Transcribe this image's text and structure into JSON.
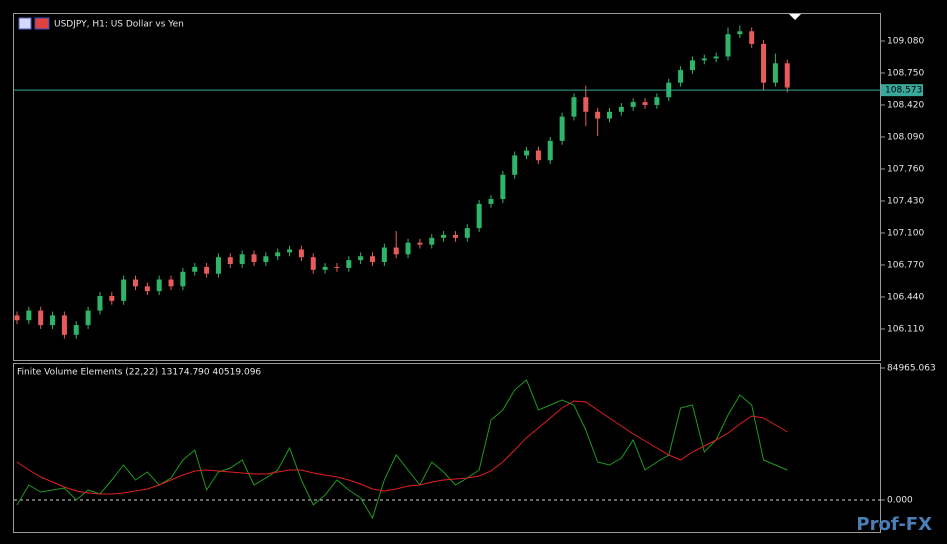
{
  "header": {
    "symbol": "USDJPY, H1:  US Dollar vs Yen"
  },
  "watermark": "Prof-FX",
  "chart_data": [
    {
      "type": "candlestick",
      "up_color": "#2fb56a",
      "down_color": "#e85b5b",
      "open": [
        106.25,
        106.2,
        106.3,
        106.15,
        106.25,
        106.05,
        106.15,
        106.3,
        106.45,
        106.4,
        106.62,
        106.55,
        106.5,
        106.62,
        106.55,
        106.7,
        106.75,
        106.68,
        106.85,
        106.78,
        106.88,
        106.8,
        106.86,
        106.9,
        106.93,
        106.85,
        106.72,
        106.75,
        106.74,
        106.82,
        106.86,
        106.8,
        106.95,
        106.88,
        107.0,
        106.98,
        107.05,
        107.08,
        107.05,
        107.15,
        107.4,
        107.45,
        107.7,
        107.9,
        107.95,
        107.85,
        108.05,
        108.3,
        108.5,
        108.35,
        108.28,
        108.35,
        108.4,
        108.45,
        108.42,
        108.5,
        108.65,
        108.78,
        108.88,
        108.9,
        108.92,
        109.15,
        109.18,
        109.05,
        108.65,
        108.85
      ],
      "high": [
        106.29,
        106.34,
        106.34,
        106.29,
        106.29,
        106.19,
        106.34,
        106.49,
        106.49,
        106.66,
        106.66,
        106.59,
        106.66,
        106.66,
        106.74,
        106.79,
        106.79,
        106.89,
        106.89,
        106.92,
        106.92,
        106.9,
        106.94,
        106.97,
        106.97,
        106.89,
        106.79,
        106.79,
        106.86,
        106.9,
        106.9,
        106.99,
        107.12,
        107.04,
        107.04,
        107.09,
        107.12,
        107.12,
        107.19,
        107.44,
        107.49,
        107.74,
        107.94,
        107.99,
        107.99,
        108.09,
        108.34,
        108.54,
        108.62,
        108.39,
        108.39,
        108.44,
        108.49,
        108.49,
        108.54,
        108.69,
        108.82,
        108.92,
        108.94,
        108.96,
        109.22,
        109.24,
        109.22,
        109.09,
        108.95,
        108.89
      ],
      "low": [
        106.16,
        106.16,
        106.11,
        106.11,
        106.01,
        106.01,
        106.11,
        106.26,
        106.36,
        106.36,
        106.51,
        106.46,
        106.46,
        106.51,
        106.51,
        106.66,
        106.64,
        106.64,
        106.74,
        106.74,
        106.76,
        106.76,
        106.82,
        106.86,
        106.81,
        106.68,
        106.68,
        106.7,
        106.7,
        106.78,
        106.76,
        106.76,
        106.84,
        106.84,
        106.94,
        106.94,
        107.01,
        107.01,
        107.01,
        107.11,
        107.36,
        107.41,
        107.66,
        107.86,
        107.81,
        107.81,
        108.01,
        108.26,
        108.2,
        108.1,
        108.24,
        108.31,
        108.36,
        108.38,
        108.38,
        108.46,
        108.61,
        108.74,
        108.84,
        108.86,
        108.88,
        109.11,
        109.01,
        108.57,
        108.61,
        108.55
      ],
      "close": [
        106.2,
        106.3,
        106.15,
        106.25,
        106.05,
        106.15,
        106.3,
        106.45,
        106.4,
        106.62,
        106.55,
        106.5,
        106.62,
        106.55,
        106.7,
        106.75,
        106.68,
        106.85,
        106.78,
        106.88,
        106.8,
        106.86,
        106.9,
        106.93,
        106.85,
        106.72,
        106.75,
        106.74,
        106.82,
        106.86,
        106.8,
        106.95,
        106.88,
        107.0,
        106.98,
        107.05,
        107.08,
        107.05,
        107.15,
        107.4,
        107.45,
        107.7,
        107.9,
        107.95,
        107.85,
        108.05,
        108.3,
        108.5,
        108.35,
        108.28,
        108.35,
        108.4,
        108.45,
        108.42,
        108.5,
        108.65,
        108.78,
        108.88,
        108.9,
        108.92,
        109.15,
        109.18,
        109.05,
        108.65,
        108.85,
        108.6
      ],
      "ylim": [
        105.79,
        109.348
      ],
      "yticks": [
        {
          "value": 106.11,
          "label": "106.110"
        },
        {
          "value": 106.44,
          "label": "106.440"
        },
        {
          "value": 106.77,
          "label": "106.770"
        },
        {
          "value": 107.1,
          "label": "107.100"
        },
        {
          "value": 107.43,
          "label": "107.430"
        },
        {
          "value": 107.76,
          "label": "107.760"
        },
        {
          "value": 108.09,
          "label": "108.090"
        },
        {
          "value": 108.42,
          "label": "108.420"
        },
        {
          "value": 108.75,
          "label": "108.750"
        },
        {
          "value": 109.08,
          "label": "109.080"
        }
      ],
      "price_line": {
        "value": 108.573,
        "color": "#3aa89a"
      }
    },
    {
      "type": "line",
      "title": "Finite Volume Elements (22,22) 13174.790 40519.096",
      "series": [
        {
          "color": "#1f9a1f",
          "values": [
            -3220,
            9660,
            5152,
            6440,
            7728,
            0,
            6440,
            3864,
            12880,
            22540,
            12880,
            18032,
            9660,
            14168,
            25760,
            32200,
            6440,
            18032,
            20608,
            25760,
            9660,
            14168,
            19320,
            33488,
            12880,
            -3220,
            3220,
            12880,
            6440,
            1288,
            -11592,
            12880,
            28980,
            19320,
            9660,
            24472,
            18032,
            9660,
            14168,
            19320,
            51520,
            57960,
            70840,
            77280,
            57960,
            61180,
            64400,
            61180,
            45080,
            24472,
            22540,
            27048,
            38640,
            19320,
            24472,
            28980,
            59248,
            61180,
            30912,
            38640,
            54740,
            67620,
            61180,
            25760,
            22540,
            19320
          ]
        },
        {
          "color": "#e02020",
          "values": [
            24472,
            19320,
            14812,
            11592,
            8372,
            5796,
            4508,
            3864,
            3864,
            4508,
            5796,
            7084,
            9660,
            12880,
            16100,
            18676,
            19320,
            18676,
            18032,
            17388,
            16744,
            16744,
            18032,
            19320,
            19320,
            17388,
            16100,
            14812,
            12880,
            10304,
            7084,
            5796,
            7084,
            9016,
            9660,
            11592,
            12880,
            13524,
            14168,
            15456,
            18676,
            24472,
            32200,
            40112,
            46368,
            52808,
            59248,
            63756,
            63112,
            57960,
            52808,
            47656,
            42504,
            37996,
            33488,
            28980,
            25760,
            30912,
            34776,
            38640,
            43148,
            48944,
            54096,
            52808,
            48300,
            43792
          ]
        }
      ],
      "level": 0,
      "ylim": [
        -20600,
        86900
      ],
      "yticks": [
        {
          "value": 0,
          "label": "0.000"
        },
        84965.063
      ]
    }
  ]
}
